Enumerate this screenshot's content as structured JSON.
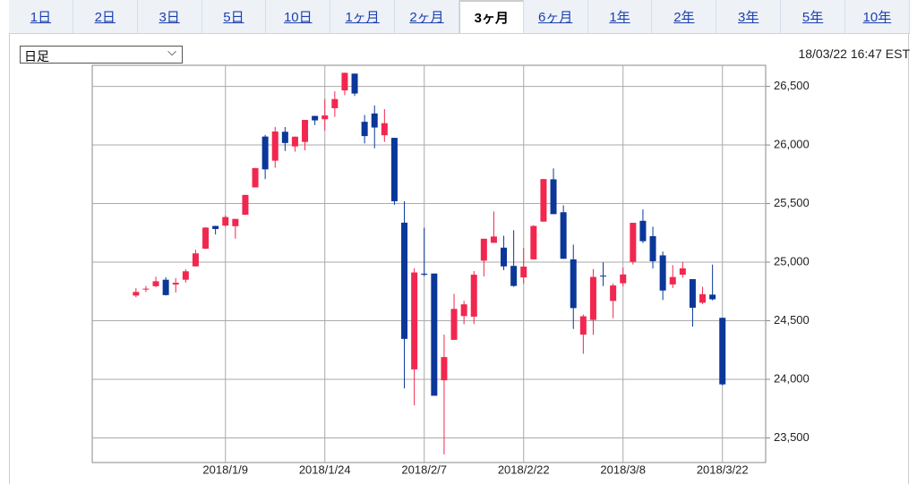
{
  "tabs": {
    "items": [
      "1日",
      "2日",
      "3日",
      "5日",
      "10日",
      "1ヶ月",
      "2ヶ月",
      "3ヶ月",
      "6ヶ月",
      "1年",
      "2年",
      "3年",
      "5年",
      "10年"
    ],
    "selected": 7
  },
  "interval_select": "日足",
  "timestamp": "18/03/22 16:47 EST",
  "chart_data": {
    "type": "candlestick",
    "categories": [
      null,
      null,
      null,
      null,
      null,
      null,
      null,
      null,
      null,
      "2018/1/9",
      null,
      null,
      null,
      null,
      null,
      null,
      null,
      null,
      null,
      "2018/1/24",
      null,
      null,
      null,
      null,
      null,
      null,
      null,
      null,
      null,
      "2018/2/7",
      null,
      null,
      null,
      null,
      null,
      null,
      null,
      null,
      null,
      "2018/2/22",
      null,
      null,
      null,
      null,
      null,
      null,
      null,
      null,
      null,
      "2018/3/8",
      null,
      null,
      null,
      null,
      null,
      null,
      null,
      null,
      null,
      "2018/3/22"
    ],
    "open": [
      24715,
      24766,
      24795,
      24850,
      24809,
      24850,
      24964,
      25115,
      25309,
      25312,
      25307,
      25405,
      25638,
      26072,
      25866,
      26113,
      25988,
      26026,
      26248,
      26220,
      26314,
      26466,
      26609,
      26198,
      26269,
      26083,
      26061,
      25337,
      24085,
      24902,
      24903,
      23992,
      24337,
      24540,
      24535,
      25013,
      25165,
      25124,
      24968,
      24870,
      25024,
      25346,
      25707,
      25426,
      25024,
      24382,
      24507,
      24885,
      24669,
      24820,
      25003,
      25353,
      25222,
      25058,
      24810,
      24893,
      24855,
      24654,
      24723,
      24525
    ],
    "high": [
      24778,
      24798,
      24876,
      24871,
      24864,
      24941,
      25106,
      25299,
      25311,
      25399,
      25370,
      25575,
      25804,
      26086,
      26154,
      26153,
      26072,
      26215,
      26250,
      26392,
      26458,
      26617,
      26609,
      26256,
      26338,
      26306,
      26062,
      25520,
      24947,
      25294,
      24903,
      24382,
      24730,
      24669,
      24924,
      25200,
      25433,
      25225,
      25273,
      25122,
      25316,
      25709,
      25800,
      25485,
      25150,
      24553,
      24941,
      24999,
      24818,
      24953,
      25336,
      25450,
      25303,
      25091,
      24975,
      25002,
      24855,
      24790,
      24979,
      24526
    ],
    "low": [
      24701,
      24745,
      24787,
      24716,
      24741,
      24825,
      24963,
      25113,
      25236,
      25304,
      25200,
      25403,
      25638,
      25709,
      25806,
      25949,
      25943,
      25955,
      26170,
      26124,
      26240,
      26425,
      26418,
      26013,
      25972,
      26027,
      25490,
      23923,
      23778,
      24880,
      23861,
      23360,
      24337,
      24470,
      24472,
      24878,
      25165,
      24932,
      24790,
      24816,
      25024,
      25346,
      25410,
      25029,
      24430,
      24218,
      24380,
      24796,
      24522,
      24792,
      24980,
      25163,
      24946,
      24677,
      24779,
      24868,
      24450,
      24642,
      24674,
      23948
    ],
    "close": [
      24746,
      24774,
      24837,
      24719,
      24824,
      24922,
      25075,
      25295,
      25283,
      25385,
      25369,
      25574,
      25803,
      25792,
      26115,
      26017,
      26071,
      26214,
      26210,
      26252,
      26392,
      26616,
      26439,
      26076,
      26149,
      26186,
      25520,
      24345,
      24912,
      24893,
      23860,
      24190,
      24601,
      24640,
      24893,
      25200,
      25219,
      24964,
      24797,
      24962,
      25309,
      25709,
      25410,
      25029,
      24608,
      24538,
      24874,
      24884,
      24801,
      24895,
      25336,
      25179,
      25008,
      24758,
      24873,
      24947,
      24611,
      24727,
      24683,
      23957
    ],
    "up_color": "#f2274f",
    "down_color": "#0b3799",
    "ylim": [
      23290,
      26680
    ],
    "yticks": [
      {
        "value": 23500,
        "label": "23,500"
      },
      {
        "value": 24000,
        "label": "24,000"
      },
      {
        "value": 24500,
        "label": "24,500"
      },
      {
        "value": 25000,
        "label": "25,000"
      },
      {
        "value": 25500,
        "label": "25,500"
      },
      {
        "value": 26000,
        "label": "26,000"
      },
      {
        "value": 26500,
        "label": "26,500"
      }
    ],
    "grid": true
  }
}
